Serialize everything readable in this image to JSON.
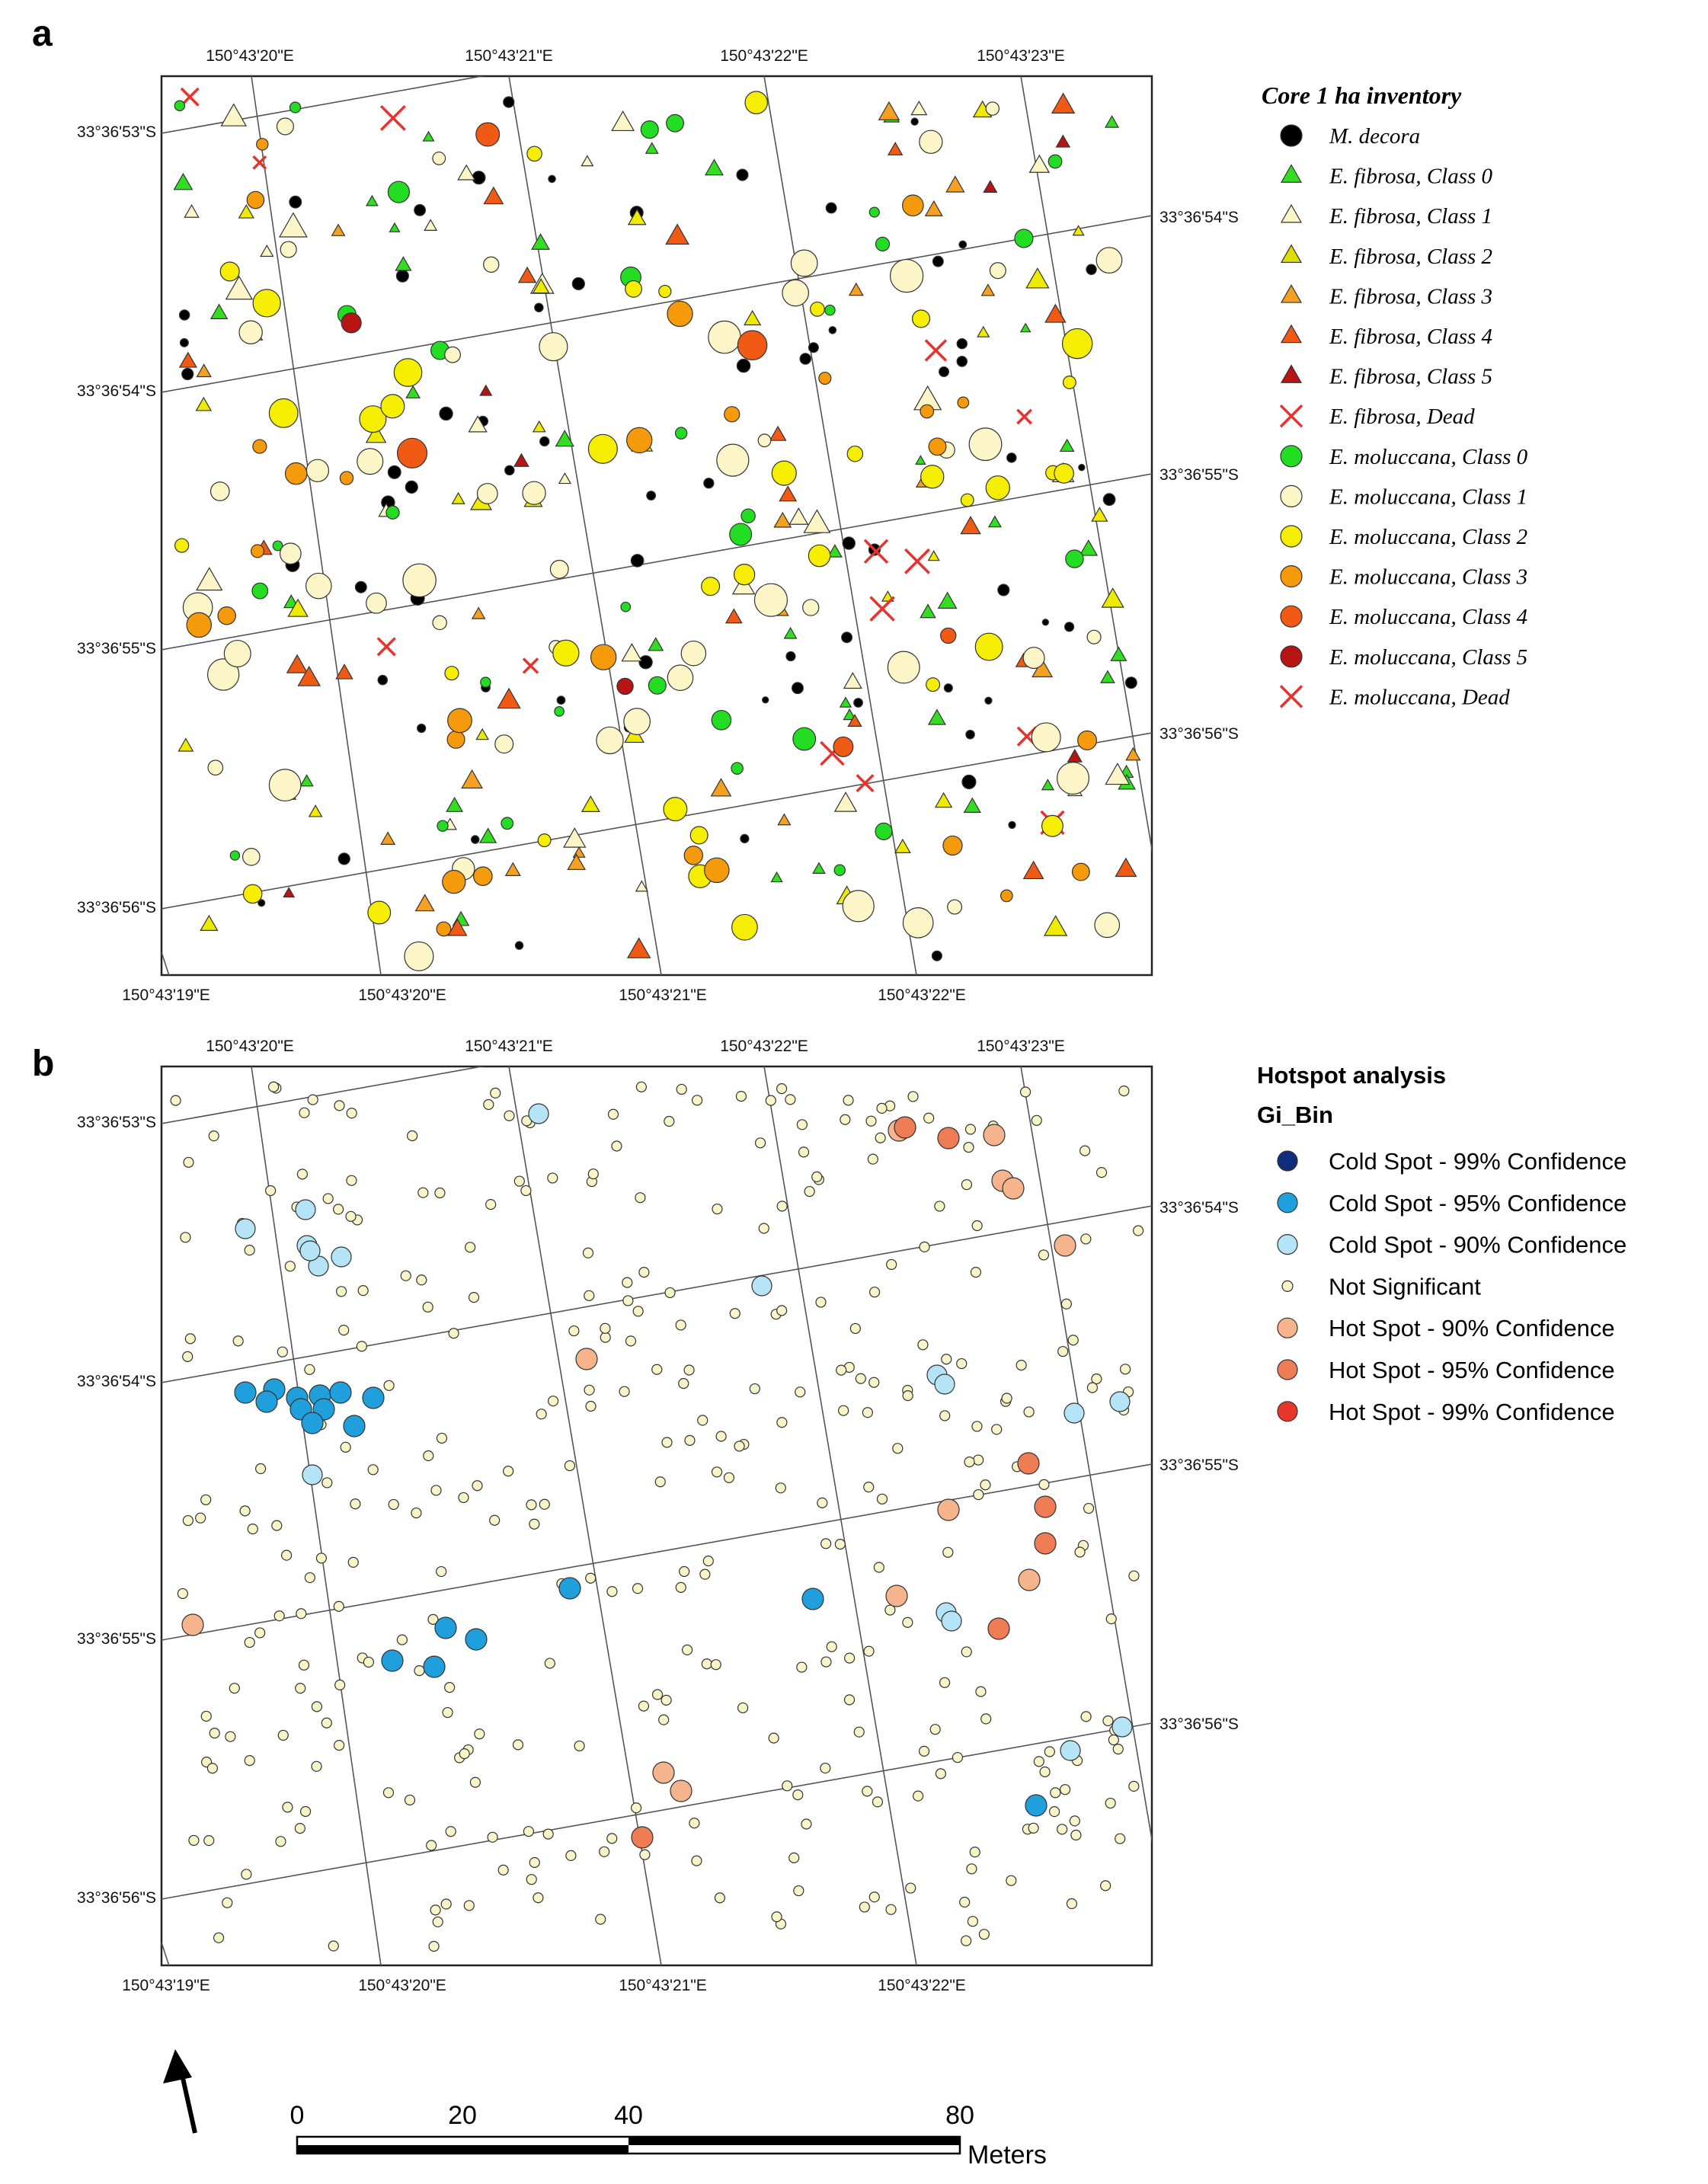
{
  "panel_a": {
    "letter": "a",
    "top_lon_labels": [
      "150°43'20\"E",
      "150°43'21\"E",
      "150°43'22\"E",
      "150°43'23\"E"
    ],
    "bottom_lon_labels": [
      "150°43'19\"E",
      "150°43'20\"E",
      "150°43'21\"E",
      "150°43'22\"E"
    ],
    "left_lat_labels": [
      "33°36'53\"S",
      "33°36'54\"S",
      "33°36'55\"S",
      "33°36'56\"S"
    ],
    "right_lat_labels": [
      "33°36'54\"S",
      "33°36'55\"S",
      "33°36'56\"S"
    ],
    "legend": {
      "title": "Core 1 ha inventory",
      "items": [
        {
          "label": "M. decora",
          "shape": "circle",
          "color": "#000000"
        },
        {
          "label": "E. fibrosa, Class 0",
          "shape": "triangle",
          "color": "#33dd22"
        },
        {
          "label": "E. fibrosa, Class 1",
          "shape": "triangle",
          "color": "#fbf5c8"
        },
        {
          "label": "E. fibrosa, Class 2",
          "shape": "triangle",
          "color": "#dddd00"
        },
        {
          "label": "E. fibrosa, Class 3",
          "shape": "triangle",
          "color": "#f5a020"
        },
        {
          "label": "E. fibrosa, Class 4",
          "shape": "triangle",
          "color": "#f05a14"
        },
        {
          "label": "E. fibrosa, Class 5",
          "shape": "triangle",
          "color": "#b71414"
        },
        {
          "label": "E. fibrosa, Dead",
          "shape": "cross",
          "color": "#e8322d"
        },
        {
          "label": "E. moluccana, Class 0",
          "shape": "circle",
          "color": "#22dd22"
        },
        {
          "label": "E. moluccana, Class 1",
          "shape": "circle",
          "color": "#fbf5c8"
        },
        {
          "label": "E. moluccana, Class 2",
          "shape": "circle",
          "color": "#f5ee00"
        },
        {
          "label": "E. moluccana, Class 3",
          "shape": "circle",
          "color": "#f59a0a"
        },
        {
          "label": "E. moluccana, Class 4",
          "shape": "circle",
          "color": "#f05a14"
        },
        {
          "label": "E. moluccana, Class 5",
          "shape": "circle",
          "color": "#b71414"
        },
        {
          "label": "E. moluccana, Dead",
          "shape": "cross",
          "color": "#e8322d"
        }
      ]
    }
  },
  "panel_b": {
    "letter": "b",
    "top_lon_labels": [
      "150°43'20\"E",
      "150°43'21\"E",
      "150°43'22\"E",
      "150°43'23\"E"
    ],
    "bottom_lon_labels": [
      "150°43'19\"E",
      "150°43'20\"E",
      "150°43'21\"E",
      "150°43'22\"E"
    ],
    "left_lat_labels": [
      "33°36'53\"S",
      "33°36'54\"S",
      "33°36'55\"S",
      "33°36'56\"S"
    ],
    "right_lat_labels": [
      "33°36'54\"S",
      "33°36'55\"S",
      "33°36'56\"S"
    ],
    "legend": {
      "title": "Hotspot analysis",
      "subtitle": "Gi_Bin",
      "items": [
        {
          "label": "Cold Spot - 99% Confidence",
          "color": "#0f2d7a"
        },
        {
          "label": "Cold Spot - 95% Confidence",
          "color": "#1fa0dc"
        },
        {
          "label": "Cold Spot - 90% Confidence",
          "color": "#b4e4f5"
        },
        {
          "label": "Not Significant",
          "color": "#f8f4c8"
        },
        {
          "label": "Hot Spot - 90% Confidence",
          "color": "#f5b48c"
        },
        {
          "label": "Hot Spot - 95% Confidence",
          "color": "#ee7d55"
        },
        {
          "label": "Hot Spot - 99% Confidence",
          "color": "#e8362b"
        }
      ]
    }
  },
  "scale_bar": {
    "labels": [
      "0",
      "20",
      "40",
      "80"
    ],
    "unit": "Meters"
  },
  "north_arrow": {
    "icon": "north-arrow-icon"
  }
}
